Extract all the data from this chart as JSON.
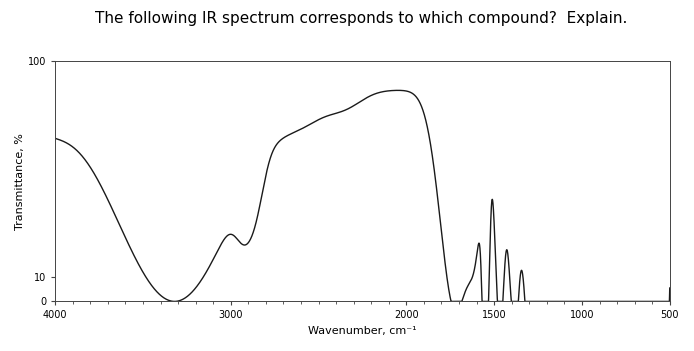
{
  "title": "The following IR spectrum corresponds to which compound?  Explain.",
  "xlabel": "Wavenumber, cm⁻¹",
  "ylabel": "Transmittance, %",
  "x_min": 4000,
  "x_max": 500,
  "y_min": 0,
  "y_max": 100,
  "x_ticks": [
    4000,
    3000,
    2000,
    1500,
    1000,
    500
  ],
  "y_ticks": [
    0,
    10,
    100
  ],
  "background_color": "#ffffff",
  "plot_bg_color": "#ffffff",
  "line_color": "#1a1a1a",
  "line_width": 1.0,
  "title_fontsize": 11,
  "axis_fontsize": 8,
  "tick_fontsize": 7
}
